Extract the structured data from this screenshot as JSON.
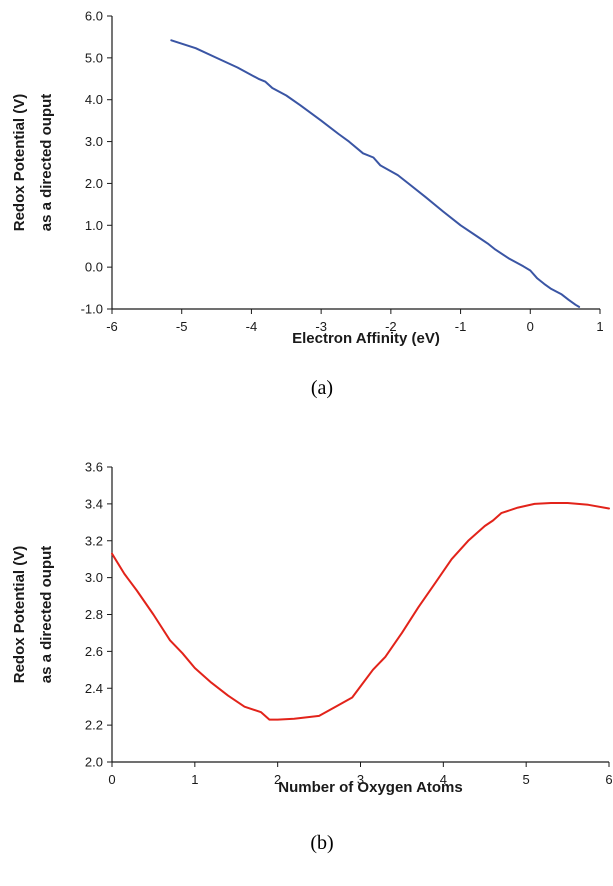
{
  "chart_data": [
    {
      "type": "line",
      "caption": "(a)",
      "xlabel": "Electron Affinity (eV)",
      "ylabel": [
        "Redox Potential (V)",
        "as a directed ouput"
      ],
      "xlim": [
        -6,
        1
      ],
      "ylim": [
        -1.0,
        6.0
      ],
      "xticks": [
        -6,
        -5,
        -4,
        -3,
        -2,
        -1,
        0,
        1
      ],
      "yticks": [
        -1.0,
        0.0,
        1.0,
        2.0,
        3.0,
        4.0,
        5.0,
        6.0
      ],
      "xtick_labels": [
        "-6",
        "-5",
        "-4",
        "-3",
        "-2",
        "-1",
        "0",
        "1"
      ],
      "ytick_labels": [
        "-1.0",
        "0.0",
        "1.0",
        "2.0",
        "3.0",
        "4.0",
        "5.0",
        "6.0"
      ],
      "grid": false,
      "color": "#3a55a4",
      "series": [
        {
          "x": [
            -5.15,
            -4.8,
            -4.5,
            -4.2,
            -3.9,
            -3.8,
            -3.7,
            -3.5,
            -3.3,
            -3.0,
            -2.75,
            -2.6,
            -2.4,
            -2.25,
            -2.15,
            -1.9,
            -1.75,
            -1.5,
            -1.25,
            -1.0,
            -0.75,
            -0.6,
            -0.5,
            -0.3,
            -0.1,
            0.0,
            0.1,
            0.2,
            0.3,
            0.45,
            0.55,
            0.65,
            0.7
          ],
          "y": [
            5.42,
            5.23,
            5.0,
            4.77,
            4.5,
            4.43,
            4.28,
            4.1,
            3.87,
            3.5,
            3.18,
            3.0,
            2.72,
            2.62,
            2.43,
            2.2,
            2.0,
            1.67,
            1.33,
            1.0,
            0.72,
            0.55,
            0.42,
            0.2,
            0.02,
            -0.08,
            -0.27,
            -0.4,
            -0.52,
            -0.65,
            -0.78,
            -0.9,
            -0.95
          ]
        }
      ]
    },
    {
      "type": "line",
      "caption": "(b)",
      "xlabel": "Number of Oxygen Atoms",
      "ylabel": [
        "Redox Potential (V)",
        "as a directed ouput"
      ],
      "xlim": [
        0,
        6
      ],
      "ylim": [
        2.0,
        3.6
      ],
      "xticks": [
        0,
        1,
        2,
        3,
        4,
        5,
        6
      ],
      "yticks": [
        2.0,
        2.2,
        2.4,
        2.6,
        2.8,
        3.0,
        3.2,
        3.4,
        3.6
      ],
      "xtick_labels": [
        "0",
        "1",
        "2",
        "3",
        "4",
        "5",
        "6"
      ],
      "ytick_labels": [
        "2.0",
        "2.2",
        "2.4",
        "2.6",
        "2.8",
        "3.0",
        "3.2",
        "3.4",
        "3.6"
      ],
      "grid": false,
      "color": "#e2231a",
      "series": [
        {
          "x": [
            0.0,
            0.15,
            0.3,
            0.5,
            0.7,
            0.85,
            1.0,
            1.2,
            1.4,
            1.6,
            1.8,
            1.9,
            2.0,
            2.2,
            2.5,
            2.7,
            2.9,
            3.0,
            3.15,
            3.3,
            3.5,
            3.7,
            3.9,
            4.1,
            4.3,
            4.5,
            4.6,
            4.7,
            4.9,
            5.1,
            5.3,
            5.5,
            5.75,
            6.0
          ],
          "y": [
            3.13,
            3.02,
            2.93,
            2.8,
            2.66,
            2.59,
            2.51,
            2.43,
            2.36,
            2.3,
            2.27,
            2.23,
            2.23,
            2.235,
            2.25,
            2.3,
            2.35,
            2.41,
            2.5,
            2.57,
            2.7,
            2.84,
            2.97,
            3.1,
            3.2,
            3.28,
            3.31,
            3.35,
            3.38,
            3.4,
            3.405,
            3.405,
            3.395,
            3.375
          ]
        }
      ]
    }
  ]
}
